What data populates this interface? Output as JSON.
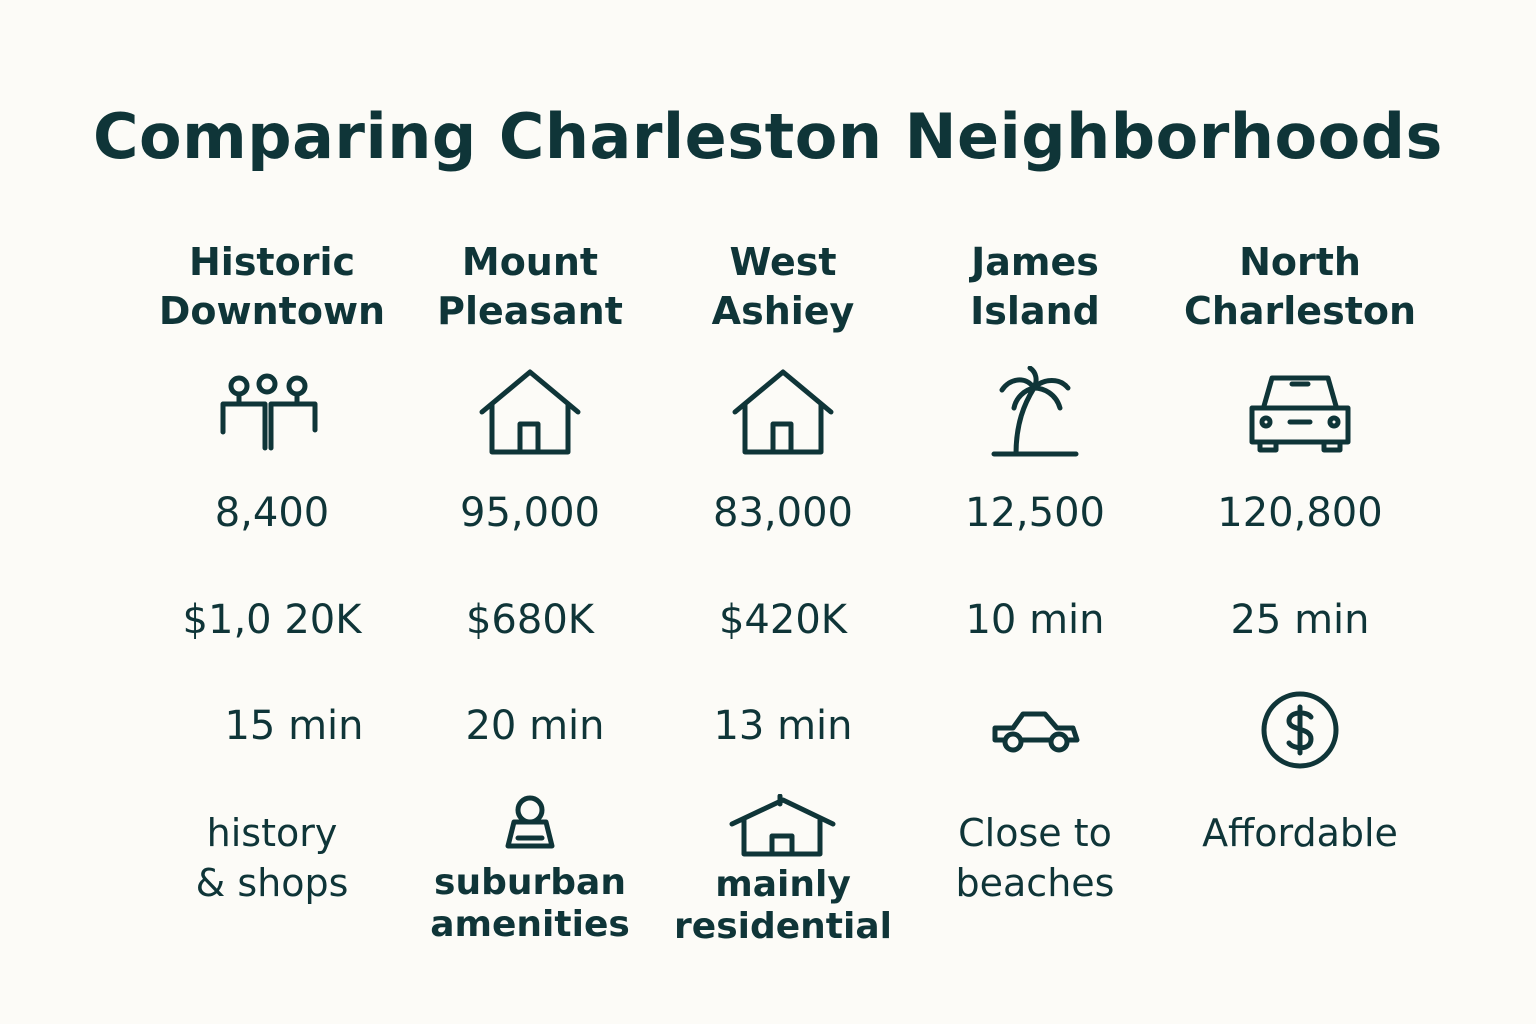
{
  "title": "Comparing Charleston Neighborhoods",
  "columns": [
    {
      "name": [
        "Historic",
        "Downtown"
      ],
      "icon": "people-icon",
      "population": "8,400",
      "row2": "$1,0 20K",
      "row3": "15 min",
      "row4": [
        "history",
        "& shops"
      ]
    },
    {
      "name": [
        "Mount",
        "Pleasant"
      ],
      "icon": "house-icon",
      "population": "95,000",
      "row2": "$680K",
      "row3": "20 min",
      "row4_icon": "person-icon",
      "row4": [
        "suburban",
        "amenities"
      ]
    },
    {
      "name": [
        "West",
        "Ashiey"
      ],
      "icon": "house-icon",
      "population": "83,000",
      "row2": "$420K",
      "row3": "13 min",
      "row4_icon": "house-outline-icon",
      "row4": [
        "mainly",
        "residential"
      ]
    },
    {
      "name": [
        "James",
        "Island"
      ],
      "icon": "palm-tree-icon",
      "population": "12,500",
      "row2": "10 min",
      "row3_icon": "car-side-icon",
      "row4": [
        "Close to",
        "beaches"
      ]
    },
    {
      "name": [
        "North",
        "Charleston"
      ],
      "icon": "car-front-icon",
      "population": "120,800",
      "row2": "25 min",
      "row3_icon": "dollar-circle-icon",
      "row4": [
        "Affordable"
      ]
    }
  ]
}
